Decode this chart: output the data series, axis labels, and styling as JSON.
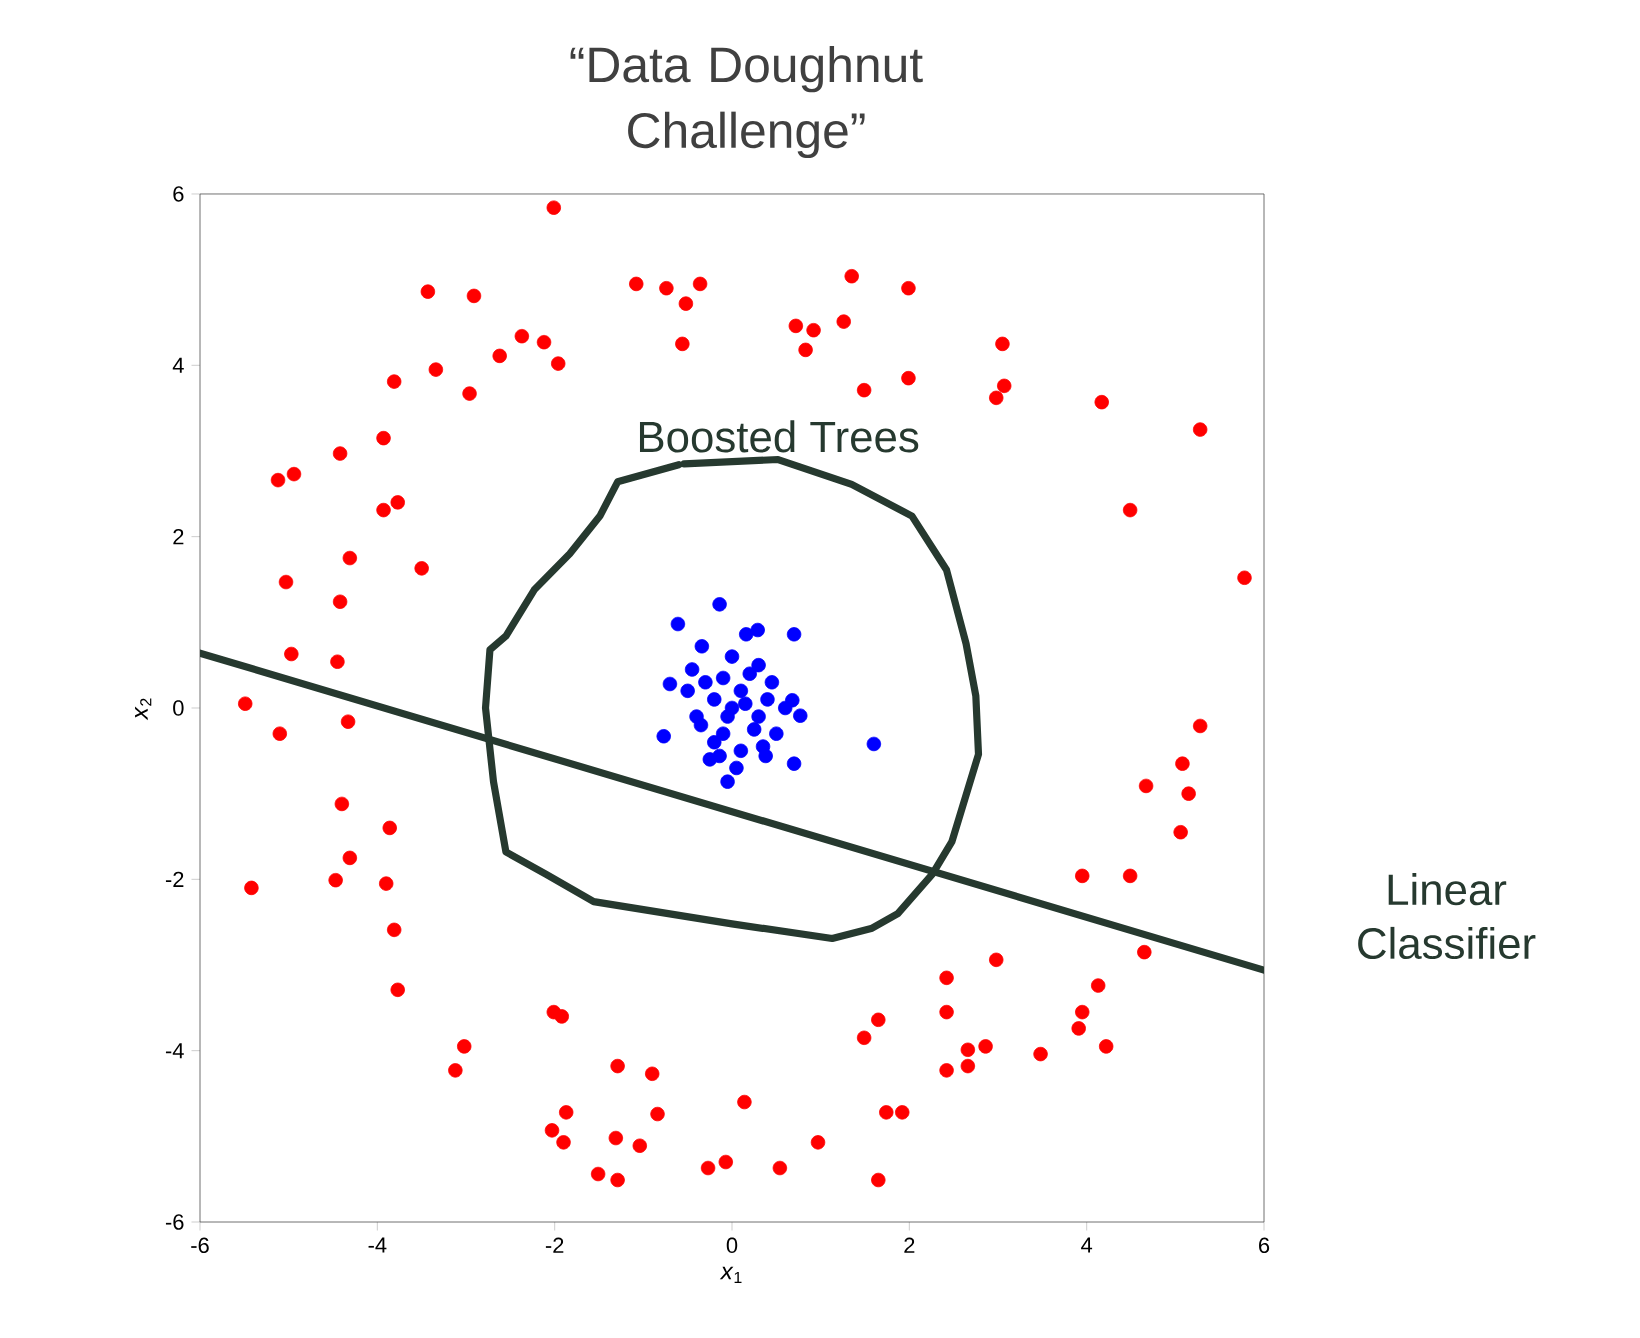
{
  "chart_data": {
    "type": "scatter",
    "title": "“Data Doughnut Challenge”",
    "xlabel": "*x*$_{1}$",
    "ylabel": "*x*$_{2}$",
    "xlim": [
      -6,
      6
    ],
    "ylim": [
      -6,
      6
    ],
    "xticks": [
      -6,
      -4,
      -2,
      0,
      2,
      4,
      6
    ],
    "yticks": [
      -6,
      -4,
      -2,
      0,
      2,
      4,
      6
    ],
    "marker": "circle",
    "series": [
      {
        "color": "#ff0000",
        "x": [
          -2.01,
          -3.43,
          -2.91,
          -1.08,
          -0.74,
          -0.36,
          -0.52,
          -0.56,
          -2.37,
          -2.12,
          -1.96,
          -2.62,
          -3.34,
          -2.96,
          -3.81,
          -3.93,
          -4.42,
          -5.12,
          -4.94,
          -3.93,
          -3.77,
          -4.31,
          -3.5,
          -5.03,
          -4.42,
          -4.97,
          -4.45,
          -5.49,
          -5.1,
          -4.33,
          -4.4,
          -3.86,
          -4.31,
          -4.47,
          -3.9,
          -5.42,
          -3.81,
          -3.77,
          -2.01,
          -1.92,
          -3.02,
          -3.12,
          -1.29,
          -0.9,
          -0.84,
          -1.87,
          -2.03,
          -1.9,
          -1.31,
          -1.04,
          -1.51,
          -1.29,
          -0.27,
          -0.07,
          0.14,
          5.28,
          5.08,
          4.67,
          5.15,
          5.06,
          3.95,
          4.49,
          4.65,
          2.98,
          2.42,
          4.13,
          2.42,
          3.95,
          3.91,
          1.65,
          1.49,
          2.66,
          2.86,
          3.48,
          4.22,
          2.42,
          2.66,
          1.74,
          1.92,
          0.97,
          0.54,
          1.65,
          1.35,
          1.99,
          0.72,
          0.92,
          0.83,
          1.26,
          3.05,
          1.49,
          1.99,
          3.07,
          2.98,
          4.17,
          5.28,
          4.49,
          5.78
        ],
        "values": [
          5.84,
          4.86,
          4.81,
          4.95,
          4.9,
          4.95,
          4.72,
          4.25,
          4.34,
          4.27,
          4.02,
          4.11,
          3.95,
          3.67,
          3.81,
          3.15,
          2.97,
          2.66,
          2.73,
          2.31,
          2.4,
          1.75,
          1.63,
          1.47,
          1.24,
          0.63,
          0.54,
          0.05,
          -0.3,
          -0.16,
          -1.12,
          -1.4,
          -1.75,
          -2.01,
          -2.05,
          -2.1,
          -2.59,
          -3.29,
          -3.55,
          -3.6,
          -3.95,
          -4.23,
          -4.18,
          -4.27,
          -4.74,
          -4.72,
          -4.93,
          -5.07,
          -5.02,
          -5.11,
          -5.44,
          -5.51,
          -5.37,
          -5.3,
          -4.6,
          -0.21,
          -0.65,
          -0.91,
          -1.0,
          -1.45,
          -1.96,
          -1.96,
          -2.85,
          -2.94,
          -3.15,
          -3.24,
          -3.55,
          -3.55,
          -3.74,
          -3.64,
          -3.85,
          -3.99,
          -3.95,
          -4.04,
          -3.95,
          -4.23,
          -4.18,
          -4.72,
          -4.72,
          -5.07,
          -5.37,
          -5.51,
          5.04,
          4.9,
          4.46,
          4.41,
          4.18,
          4.51,
          4.25,
          3.71,
          3.85,
          3.76,
          3.62,
          3.57,
          3.25,
          2.31,
          1.52
        ]
      },
      {
        "color": "#0000ff",
        "x": [
          -0.14,
          -0.61,
          0.7,
          0.29,
          0.16,
          -0.34,
          1.6,
          0.7,
          -0.05,
          -0.77,
          -0.7,
          0.77,
          0.68,
          0.38,
          -0.14,
          0,
          0.1,
          -0.2,
          0.3,
          -0.1,
          0.2,
          -0.3,
          0.4,
          -0.4,
          0.1,
          -0.2,
          0.5,
          -0.5,
          0.3,
          0,
          -0.1,
          0.25,
          -0.35,
          0.45,
          0.15,
          -0.05,
          0.6,
          -0.45,
          0.05,
          -0.25,
          0.35
        ],
        "values": [
          1.21,
          0.98,
          0.86,
          0.91,
          0.86,
          0.72,
          -0.42,
          -0.65,
          -0.86,
          -0.33,
          0.28,
          -0.09,
          0.09,
          -0.56,
          -0.56,
          0,
          0.2,
          0.1,
          -0.1,
          -0.3,
          0.4,
          0.3,
          0.1,
          -0.1,
          -0.5,
          -0.4,
          -0.3,
          0.2,
          0.5,
          0.6,
          0.35,
          -0.25,
          -0.2,
          0.3,
          0.05,
          -0.1,
          0,
          0.45,
          -0.7,
          -0.6,
          -0.45
        ]
      },
      {
        "type": "line",
        "name": "Linear Classifier",
        "color": "#26392f",
        "marker": "none",
        "x": [
          -6,
          6
        ],
        "values": [
          0.64,
          -3.06
        ]
      },
      {
        "type": "line",
        "name": "Boosted Trees",
        "color": "#26392f",
        "marker": "none",
        "x": [
          -0.54,
          0.52,
          1.35,
          2.03,
          2.42,
          2.64,
          2.75,
          2.78,
          2.48,
          2.26,
          1.87,
          1.58,
          1.13,
          0,
          -1.56,
          -2.1,
          -2.55,
          -2.69,
          -2.78,
          -2.73,
          -2.55,
          -2.23,
          -1.83,
          -1.49,
          -1.29,
          -0.6
        ],
        "values": [
          2.85,
          2.9,
          2.61,
          2.24,
          1.61,
          0.75,
          0.14,
          -0.54,
          -1.56,
          -1.94,
          -2.4,
          -2.57,
          -2.69,
          -2.52,
          -2.26,
          -1.94,
          -1.68,
          -0.86,
          0,
          0.68,
          0.84,
          1.38,
          1.8,
          2.24,
          2.64,
          2.84
        ]
      }
    ]
  }
}
